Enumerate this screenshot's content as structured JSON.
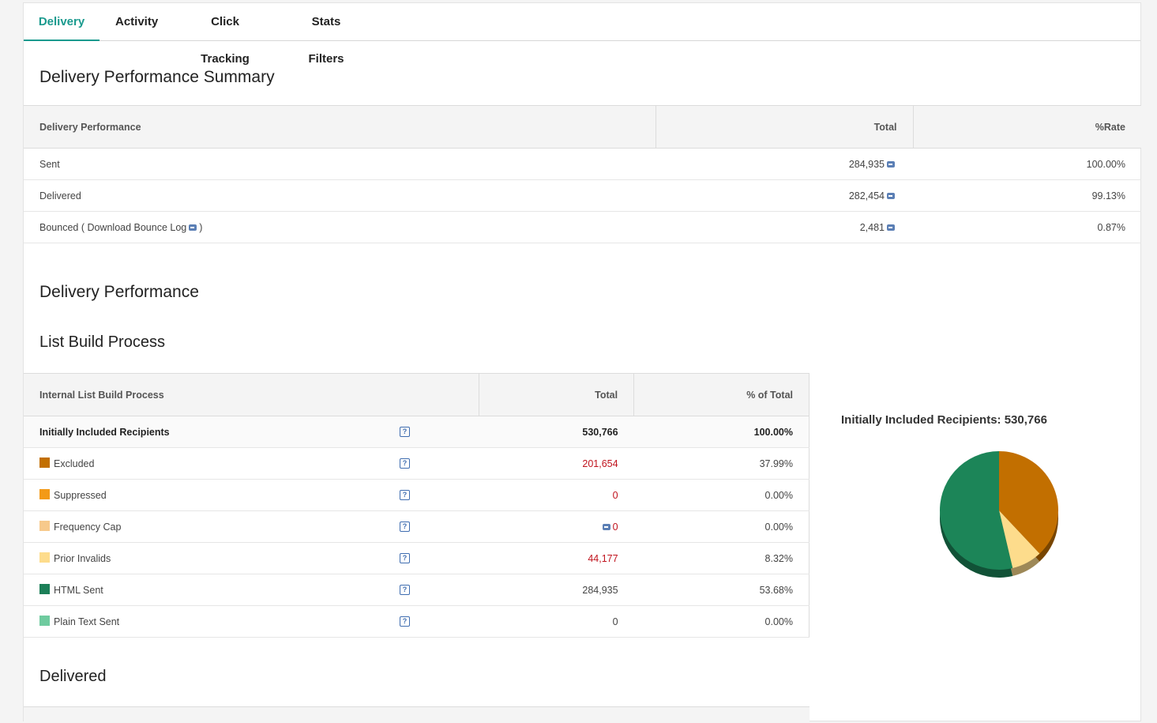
{
  "tabs": [
    {
      "label": "Delivery",
      "active": true
    },
    {
      "label": "Activity"
    },
    {
      "label": "Click Tracking"
    },
    {
      "label": "Stats Filters"
    }
  ],
  "summary": {
    "title": "Delivery Performance Summary",
    "columns": [
      "Delivery Performance",
      "Total",
      "%Rate"
    ],
    "rows": [
      {
        "label": "Sent",
        "total": "284,935",
        "rate": "100.00%"
      },
      {
        "label": "Delivered",
        "total": "282,454",
        "rate": "99.13%"
      },
      {
        "label": "Bounced ( Download Bounce Log",
        "label_suffix": ")",
        "total": "2,481",
        "rate": "0.87%"
      }
    ]
  },
  "delivery_performance": {
    "title": "Delivery Performance",
    "subtitle": "List Build Process",
    "columns": [
      "Internal List Build Process",
      "Total",
      "% of Total"
    ],
    "rows": [
      {
        "label": "Initially Included Recipients",
        "total": "530,766",
        "pct": "100.00%"
      },
      {
        "label": "Excluded",
        "total": "201,654",
        "pct": "37.99%",
        "color": "#c26f00"
      },
      {
        "label": "Suppressed",
        "total": "0",
        "pct": "0.00%",
        "color": "#f39a17"
      },
      {
        "label": "Frequency Cap",
        "total": "0",
        "pct": "0.00%",
        "color": "#f7c98b"
      },
      {
        "label": "Prior Invalids",
        "total": "44,177",
        "pct": "8.32%",
        "color": "#fddc8c"
      },
      {
        "label": "HTML Sent",
        "total": "284,935",
        "pct": "53.68%",
        "color": "#1c7f58"
      },
      {
        "label": "Plain Text Sent",
        "total": "0",
        "pct": "0.00%",
        "color": "#6fcb9f"
      }
    ],
    "help_glyph": "?"
  },
  "chart_data": {
    "type": "pie",
    "title": "Initially Included Recipients: 530,766",
    "slices": [
      {
        "name": "Excluded",
        "value": 37.99,
        "color": "#c26f00"
      },
      {
        "name": "Prior Invalids",
        "value": 8.32,
        "color": "#fddc8c"
      },
      {
        "name": "HTML Sent",
        "value": 53.68,
        "color": "#1c8558"
      }
    ]
  },
  "delivered": {
    "title": "Delivered"
  }
}
